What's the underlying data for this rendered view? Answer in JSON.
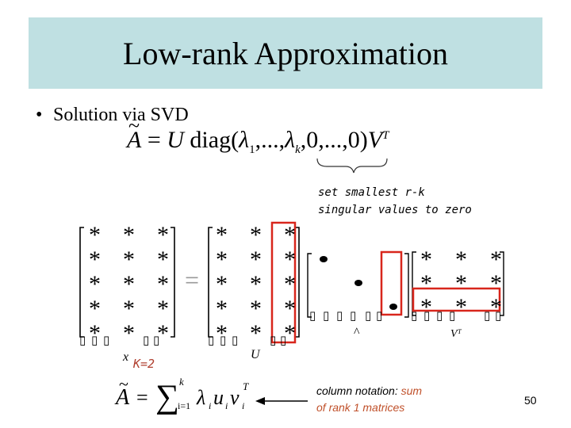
{
  "slide": {
    "title": "Low-rank Approximation",
    "bullet": "Solution via SVD",
    "equation": {
      "lhs": "A",
      "eq": "=",
      "U": "U",
      "diag": "diag(",
      "lambda": "λ",
      "sub1": "1",
      "ellipsis1": ",...,",
      "subk": "k",
      "zeros": ",0,...,0)",
      "V": "V",
      "supT": "T"
    },
    "brace_note": [
      "set smallest r-k",
      "singular values to zero"
    ],
    "k_label": "K=2",
    "column_note": {
      "line1": "column notation: ",
      "highlight": "sum",
      "line2": "of rank 1 matrices"
    },
    "page_number": "50",
    "sum_equation": {
      "lhs": "A",
      "eq": "=",
      "sum": "∑",
      "upper": "k",
      "lower": "i=1",
      "body": "λ",
      "i": "i",
      "u": "u",
      "v": "v",
      "T": "T"
    }
  },
  "matrices": {
    "star": "*",
    "equals": "=",
    "placeholder_glyph": "▯"
  },
  "colors": {
    "title_bg": "#bfe0e2",
    "highlight_box": "#d8261c",
    "note_accent": "#c0502a"
  }
}
